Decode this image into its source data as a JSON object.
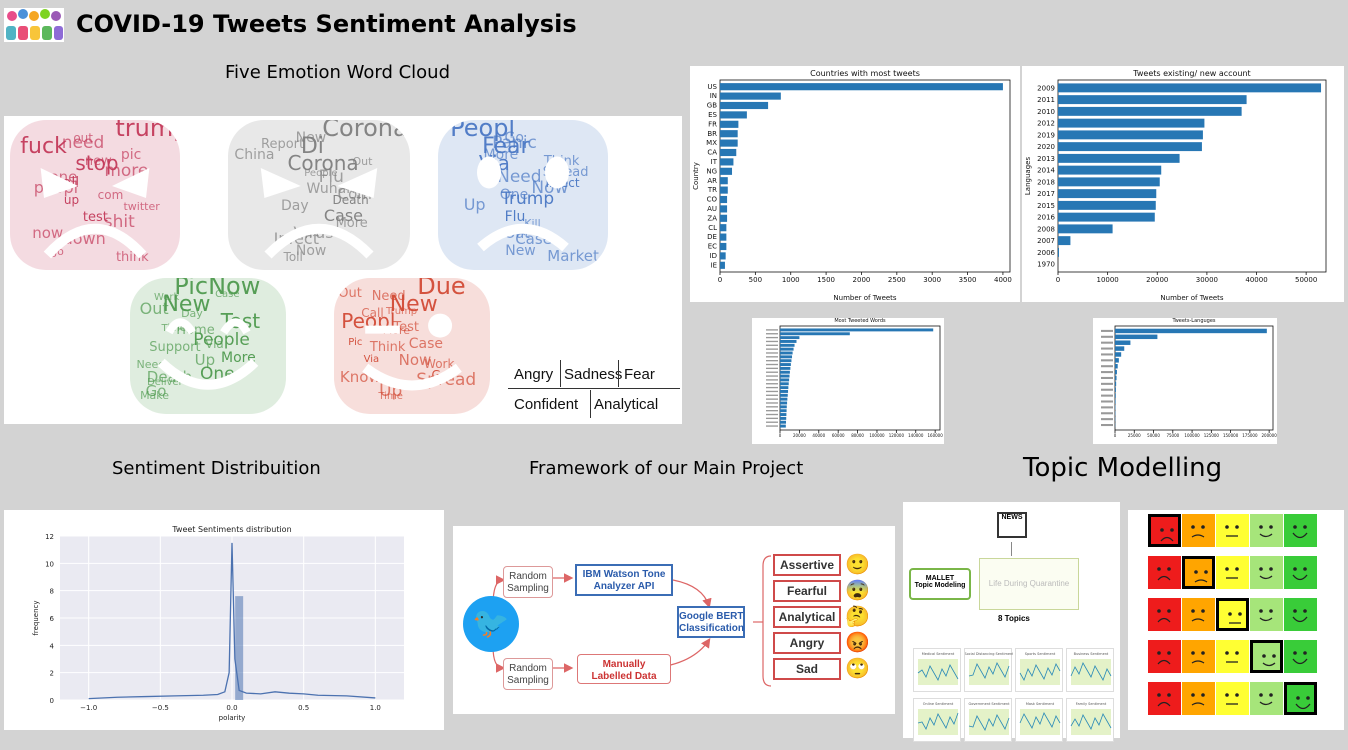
{
  "header": {
    "title": "COVID-19 Tweets Sentiment Analysis"
  },
  "sections": {
    "word_cloud": "Five Emotion Word Cloud",
    "sentiment_dist": "Sentiment Distribuition",
    "framework": "Framework of our Main Project",
    "topic": "Topic Modelling"
  },
  "clouds": [
    {
      "name": "angry",
      "color": "#c33a5a",
      "words": [
        "trump",
        "fuck",
        "stop",
        "call",
        "up",
        "test",
        "now",
        "go",
        "out",
        "pic",
        "more",
        "peopl",
        "twitter",
        "shit",
        "down",
        "think",
        "need",
        "new",
        "one",
        "com"
      ]
    },
    {
      "name": "sadness",
      "color": "#7f7f7f",
      "words": [
        "Coronaviru",
        "Di",
        "Corona",
        "Via",
        "Death",
        "Case",
        "Virus",
        "Now",
        "New",
        "China",
        "People",
        "Wuhan",
        "Day",
        "More",
        "Infect",
        "Toll",
        "Report",
        "Out",
        "Flu",
        "Com"
      ]
    },
    {
      "name": "fear",
      "color": "#4a78c4",
      "words": [
        "Peopl",
        "Fear",
        "Via",
        "Infect",
        "Trump",
        "Flu",
        "Out",
        "New",
        "Go",
        "More",
        "Spread",
        "Now",
        "Up",
        "Kill",
        "Case",
        "Market",
        "Panic",
        "Think",
        "Need",
        "One"
      ]
    },
    {
      "name": "confident",
      "color": "#4f9a4f",
      "words": [
        "PicNow",
        "New",
        "Test",
        "People",
        "More",
        "One",
        "Go",
        "Case",
        "Out",
        "Time",
        "Via",
        "Up",
        "Death",
        "Make",
        "Work",
        "Day",
        "Home",
        "Support",
        "Need",
        "Deliver"
      ]
    },
    {
      "name": "analytical",
      "color": "#d24a36",
      "words": [
        "Due",
        "New",
        "Peopl",
        "Pic",
        "Via",
        "Go",
        "Up",
        "Out",
        "Trump",
        "Test",
        "Case",
        "Now",
        "Know",
        "Time",
        "Need",
        "Call",
        "More",
        "Think",
        "Work",
        "Spread"
      ]
    }
  ],
  "legend": {
    "row1": [
      "Angry",
      "Sadness",
      "Fear"
    ],
    "row2": [
      "Confident",
      "Analytical"
    ]
  },
  "chart_data": [
    {
      "type": "bar",
      "orientation": "horizontal",
      "title": "Countries with most tweets",
      "xlabel": "Number of Tweets",
      "ylabel": "Country",
      "xlim": [
        0,
        4100
      ],
      "xticks": [
        "0",
        "500",
        "1000",
        "1500",
        "2000",
        "2500",
        "3000",
        "3500",
        "4000"
      ],
      "categories": [
        "IE",
        "ID",
        "EC",
        "DE",
        "CL",
        "ZA",
        "AU",
        "CO",
        "TR",
        "AR",
        "NG",
        "IT",
        "CA",
        "MX",
        "BR",
        "FR",
        "ES",
        "GB",
        "IN",
        "US"
      ],
      "values": [
        70,
        80,
        90,
        90,
        90,
        100,
        100,
        100,
        110,
        110,
        170,
        190,
        230,
        250,
        250,
        260,
        380,
        680,
        860,
        4000
      ],
      "color": "#2777b4"
    },
    {
      "type": "bar",
      "orientation": "horizontal",
      "title": "Tweets existing/ new account",
      "xlabel": "Number of Tweets",
      "ylabel": "Languages",
      "xlim": [
        0,
        54000
      ],
      "xticks": [
        "0",
        "10000",
        "20000",
        "30000",
        "40000",
        "50000"
      ],
      "categories": [
        "1970",
        "2006",
        "2007",
        "2008",
        "2016",
        "2015",
        "2017",
        "2018",
        "2014",
        "2013",
        "2020",
        "2019",
        "2012",
        "2010",
        "2011",
        "2009"
      ],
      "values": [
        0,
        200,
        2500,
        11000,
        19500,
        19700,
        19800,
        20500,
        20800,
        24500,
        29000,
        29200,
        29500,
        37000,
        38000,
        53000
      ],
      "color": "#2777b4"
    },
    {
      "type": "bar",
      "orientation": "horizontal",
      "title": "Most Tweeted Words",
      "xticks": [
        "0",
        "20000",
        "40000",
        "60000",
        "80000",
        "100000",
        "120000",
        "140000",
        "160000"
      ],
      "xlim": [
        0,
        165000
      ],
      "values": [
        6000,
        6200,
        6400,
        6600,
        6800,
        7000,
        7300,
        7600,
        8000,
        8300,
        8600,
        9000,
        9400,
        9800,
        10200,
        10700,
        11200,
        11800,
        12400,
        13000,
        14000,
        15000,
        17000,
        20000,
        72000,
        158000
      ],
      "color": "#2777b4"
    },
    {
      "type": "bar",
      "orientation": "horizontal",
      "title": "Tweets-Languges",
      "xticks": [
        "0",
        "25000",
        "50000",
        "75000",
        "100000",
        "125000",
        "150000",
        "175000",
        "200000"
      ],
      "xlim": [
        0,
        205000
      ],
      "values": [
        300,
        400,
        500,
        600,
        800,
        1000,
        1200,
        1500,
        2000,
        2500,
        3500,
        5000,
        8000,
        12000,
        20000,
        55000,
        197000
      ],
      "color": "#2777b4"
    },
    {
      "type": "area",
      "title": "Tweet Sentiments distribution",
      "xlabel": "polarity",
      "ylabel": "frequency",
      "xlim": [
        -1.2,
        1.2
      ],
      "ylim": [
        0,
        12
      ],
      "xticks": [
        "-1.0",
        "-0.5",
        "0.0",
        "0.5",
        "1.0"
      ],
      "yticks": [
        "0",
        "2",
        "4",
        "6",
        "8",
        "10",
        "12"
      ],
      "x": [
        -1.0,
        -0.8,
        -0.6,
        -0.4,
        -0.2,
        -0.1,
        -0.05,
        -0.02,
        0.0,
        0.02,
        0.05,
        0.1,
        0.2,
        0.3,
        0.4,
        0.5,
        0.6,
        0.8,
        1.0
      ],
      "y": [
        0.1,
        0.2,
        0.25,
        0.3,
        0.35,
        0.4,
        0.6,
        2.0,
        11.5,
        3.0,
        0.7,
        0.5,
        0.45,
        0.6,
        0.5,
        0.45,
        0.35,
        0.3,
        0.15
      ],
      "hist_bar": {
        "x": 0.05,
        "height": 7.6
      },
      "color": "#4c72b0"
    }
  ],
  "framework": {
    "random1": "Random\nSampling",
    "random2": "Random\nSampling",
    "ibm": "IBM Watson Tone\nAnalyzer API",
    "manual": "Manually\nLabelled Data",
    "bert": "Google BERT\nClassification",
    "tones": [
      "Assertive",
      "Fearful",
      "Analytical",
      "Angry",
      "Sad"
    ],
    "tone_emojis": [
      "🙂",
      "😨",
      "🤔",
      "😡",
      "🙄"
    ]
  },
  "topic_model": {
    "news_icon": "NEWS",
    "mallet": "MALLET\nTopic Modeling",
    "doc_title": "Life During Quarantine",
    "topics": "8 Topics",
    "mini_titles": [
      "Medical Sentiment",
      "Social Distancing Sentiment",
      "Sports Sentiment",
      "Business Sentiment",
      "Online Sentiment",
      "Government Sentiment",
      "Mask Sentiment",
      "Family Sentiment"
    ]
  },
  "scale": {
    "colors": [
      "#ee1c1c",
      "#ffa500",
      "#ffff33",
      "#a6e57a",
      "#39cc39"
    ],
    "selected": [
      0,
      1,
      2,
      3,
      4
    ]
  }
}
